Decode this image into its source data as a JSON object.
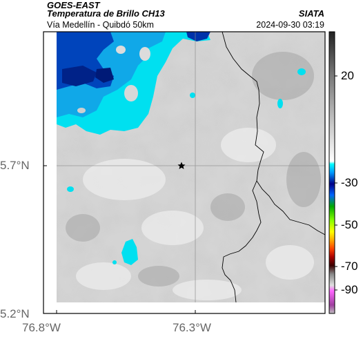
{
  "header": {
    "satellite": "GOES-EAST",
    "product": "Temperatura de Brillo CH13",
    "organization": "SIATA",
    "region": "Vía Medellín - Quibdó 50km",
    "timestamp": "2024-09-30 03:19"
  },
  "axes": {
    "lat_labels": [
      "5.7°N",
      "5.2°N"
    ],
    "lon_labels": [
      "76.8°W",
      "76.3°W"
    ]
  },
  "colorbar": {
    "tick_labels": [
      "20",
      "-30",
      "-50",
      "-70",
      "-90"
    ]
  },
  "colors": {
    "cold_cloud": "#00e5ff",
    "very_cold_cloud": "#0033aa",
    "warm_background": "#d8d8d8",
    "border_line": "#000000"
  },
  "icons": {
    "marker": "star-marker-icon"
  }
}
